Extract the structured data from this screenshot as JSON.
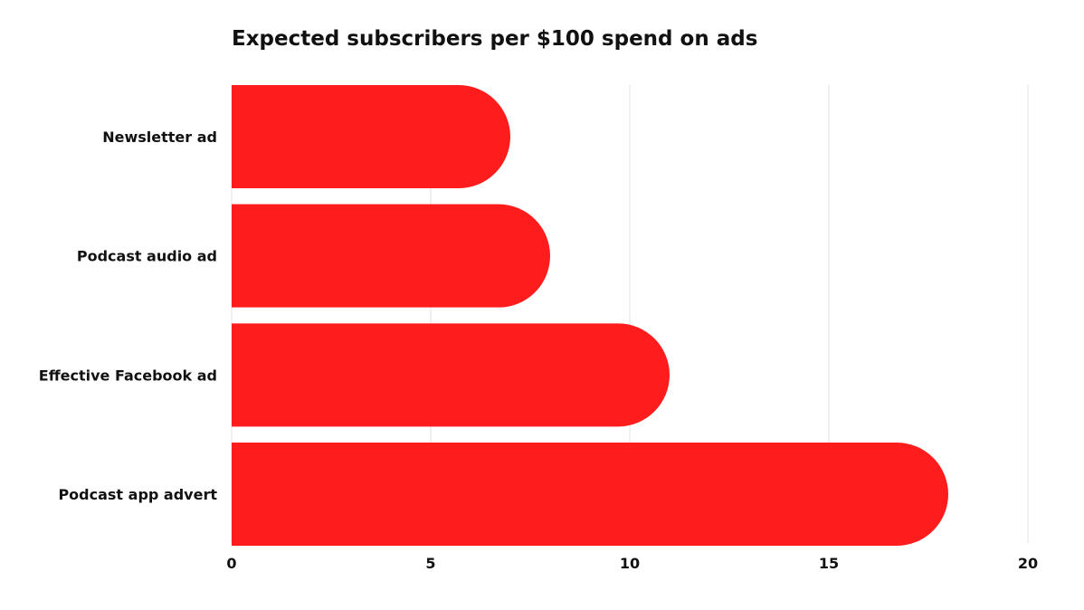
{
  "chart_data": {
    "type": "bar",
    "orientation": "horizontal",
    "title": "Expected subscribers per $100 spend on ads",
    "xlabel": "",
    "ylabel": "",
    "categories": [
      "Newsletter ad",
      "Podcast audio ad",
      "Effective Facebook ad",
      "Podcast app advert"
    ],
    "values": [
      7,
      8,
      11,
      18
    ],
    "xlim": [
      0,
      20
    ],
    "xticks": [
      0,
      5,
      10,
      15,
      20
    ],
    "grid": "vertical",
    "legend": "none",
    "bar_color": "#ff1c1c"
  }
}
